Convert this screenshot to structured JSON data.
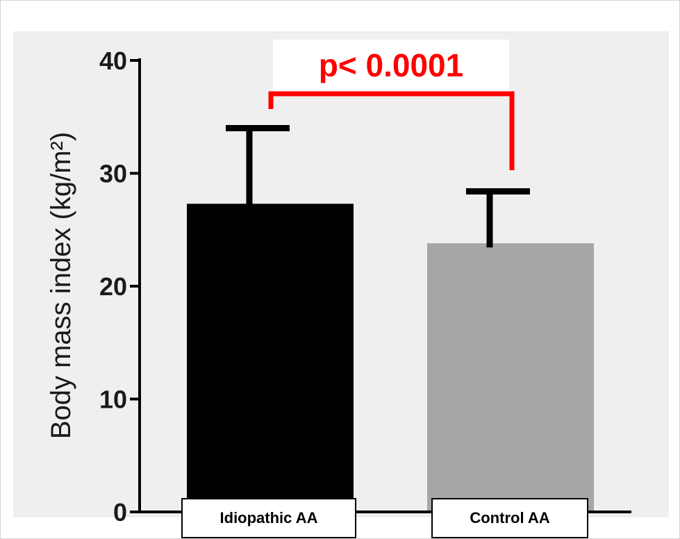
{
  "chart_data": {
    "type": "bar",
    "categories": [
      "Idiopathic AA",
      "Control AA"
    ],
    "values": [
      27.3,
      23.8
    ],
    "error_upper": [
      34.0,
      28.4
    ],
    "ylabel": "Body mass index (kg/m²)",
    "ylim": [
      0,
      40
    ],
    "yticks": [
      0,
      10,
      20,
      30,
      40
    ],
    "grid": false,
    "annotation": "p< 0.0001",
    "colors": {
      "bars": [
        "#000000",
        "#a6a6a9"
      ],
      "annotation": "#ff0000",
      "plot_background": "#efefef"
    }
  }
}
